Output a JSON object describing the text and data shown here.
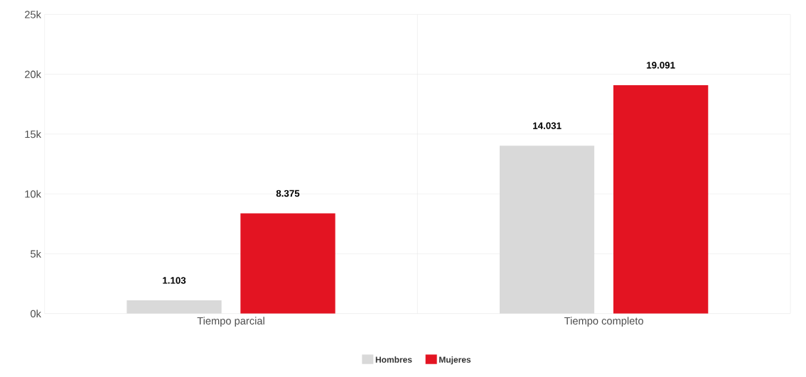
{
  "chart_data": {
    "type": "bar",
    "categories": [
      "Tiempo parcial",
      "Tiempo completo"
    ],
    "series": [
      {
        "name": "Hombres",
        "color": "#d9d9d9",
        "values": [
          1103,
          14031
        ],
        "value_labels": [
          "1.103",
          "14.031"
        ]
      },
      {
        "name": "Mujeres",
        "color": "#e31422",
        "values": [
          8375,
          19091
        ],
        "value_labels": [
          "8.375",
          "19.091"
        ]
      }
    ],
    "ylim": [
      0,
      25000
    ],
    "yticks": [
      {
        "value": 0,
        "label": "0k"
      },
      {
        "value": 5000,
        "label": "5k"
      },
      {
        "value": 10000,
        "label": "10k"
      },
      {
        "value": 15000,
        "label": "15k"
      },
      {
        "value": 20000,
        "label": "20k"
      },
      {
        "value": 25000,
        "label": "25k"
      }
    ],
    "grid": true,
    "legend": "bottom"
  }
}
